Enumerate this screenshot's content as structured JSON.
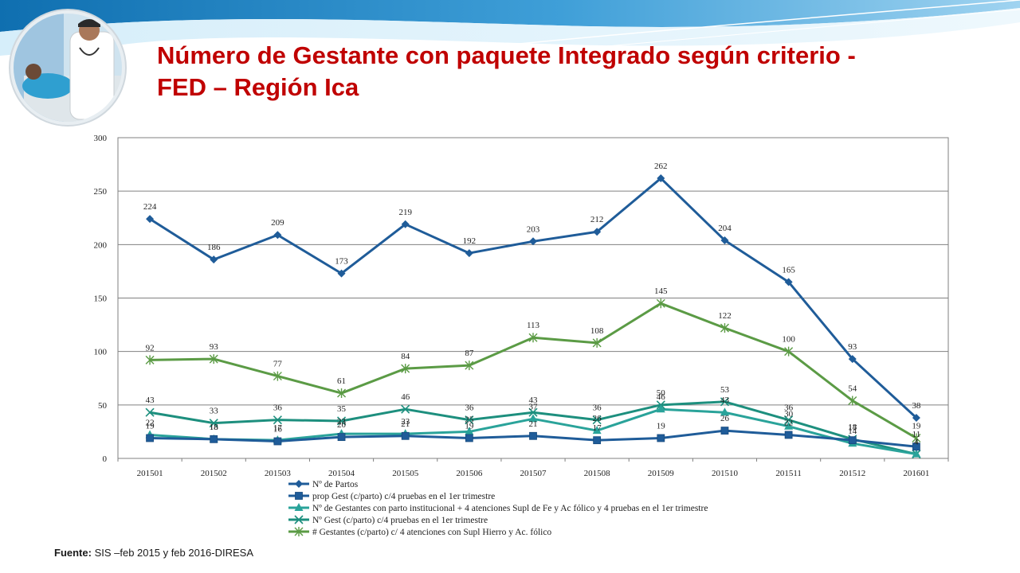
{
  "slide": {
    "title_line1": "Número de Gestante con  paquete Integrado según criterio -",
    "title_line2": "FED – Región Ica",
    "source_label": "Fuente:",
    "source_text": " SIS –feb 2015 y feb 2016-DIRESA"
  },
  "chart_data": {
    "type": "line",
    "categories": [
      "201501",
      "201502",
      "201503",
      "201504",
      "201505",
      "201506",
      "201507",
      "201508",
      "201509",
      "201510",
      "201511",
      "201512",
      "201601"
    ],
    "ylim": [
      0,
      300
    ],
    "yticks": [
      0,
      50,
      100,
      150,
      200,
      250,
      300
    ],
    "grid": true,
    "legend_position": "bottom",
    "series": [
      {
        "name": "Nº de Partos",
        "color": "#1f5c99",
        "marker": "diamond",
        "values": [
          224,
          186,
          209,
          173,
          219,
          192,
          203,
          212,
          262,
          204,
          165,
          93,
          38
        ]
      },
      {
        "name": "prop Gest (c/parto) c/4 pruebas en el 1er trimestre",
        "color": "#1f5c99",
        "marker": "square",
        "values": [
          19,
          18,
          16,
          20,
          21,
          19,
          21,
          17,
          19,
          26,
          22,
          17,
          11
        ]
      },
      {
        "name": "Nº de Gestantes con parto institucional + 4 atenciones Supl de Fe y Ac fólico y 4 pruebas en el 1er trimestre",
        "color": "#2aa39a",
        "marker": "triangle",
        "values": [
          22,
          18,
          17,
          23,
          23,
          25,
          37,
          26,
          46,
          43,
          30,
          14,
          4
        ]
      },
      {
        "name": "Nº Gest (c/parto) c/4 pruebas en el 1er trimestre",
        "color": "#1d8f7e",
        "marker": "x",
        "values": [
          43,
          33,
          36,
          35,
          46,
          36,
          43,
          36,
          50,
          53,
          36,
          18,
          4
        ]
      },
      {
        "name": "# Gestantes (c/parto) c/ 4 atenciones con Supl Hierro y Ac. fólico",
        "color": "#5b9b45",
        "marker": "star",
        "values": [
          92,
          93,
          77,
          61,
          84,
          87,
          113,
          108,
          145,
          122,
          100,
          54,
          19
        ]
      }
    ]
  }
}
